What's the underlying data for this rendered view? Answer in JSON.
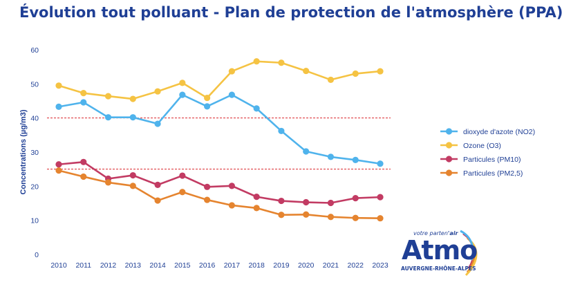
{
  "title": "Évolution tout polluant - Plan de protection de l'atmosphère (PPA)",
  "logo": {
    "tagline_prefix": "votre parten",
    "tagline_suffix": "'air",
    "brand": "Atmo",
    "region": "AUVERGNE-RHÔNE-ALPES"
  },
  "chart_data": {
    "type": "line",
    "title": "Évolution tout polluant - Plan de protection de l'atmosphère (PPA)",
    "xlabel": "",
    "ylabel": "Concentrations (µg/m3)",
    "ylim": [
      0,
      60
    ],
    "yticks": [
      0,
      10,
      20,
      30,
      40,
      50,
      60
    ],
    "grid": false,
    "legend_position": "right",
    "x": [
      "2010",
      "2011",
      "2012",
      "2013",
      "2014",
      "2015",
      "2016",
      "2017",
      "2018",
      "2019",
      "2020",
      "2021",
      "2022",
      "2023"
    ],
    "series": [
      {
        "name": "dioxyde d'azote (NO2)",
        "color": "#4fb3ec",
        "values": [
          43.3,
          44.6,
          40.2,
          40.2,
          38.3,
          46.8,
          43.4,
          46.8,
          42.8,
          36.2,
          30.2,
          28.6,
          27.7,
          26.6
        ]
      },
      {
        "name": "Ozone (O3)",
        "color": "#f5c343",
        "values": [
          49.5,
          47.3,
          46.4,
          45.6,
          47.8,
          50.3,
          45.9,
          53.7,
          56.6,
          56.2,
          53.8,
          51.2,
          53.0,
          53.7
        ]
      },
      {
        "name": "Particules (PM10)",
        "color": "#c23b63",
        "values": [
          26.4,
          27.1,
          22.2,
          23.2,
          20.4,
          23.1,
          19.8,
          20.1,
          16.9,
          15.7,
          15.3,
          15.1,
          16.5,
          16.8
        ]
      },
      {
        "name": "Particules (PM2,5)",
        "color": "#e5842f",
        "values": [
          24.6,
          22.8,
          21.1,
          20.1,
          15.8,
          18.3,
          16.0,
          14.4,
          13.6,
          11.6,
          11.7,
          11.0,
          10.7,
          10.6
        ]
      }
    ],
    "reference_lines": [
      {
        "value": 40,
        "color": "#d9262b",
        "style": "dashed"
      },
      {
        "value": 25,
        "color": "#d9262b",
        "style": "dashed"
      }
    ]
  }
}
